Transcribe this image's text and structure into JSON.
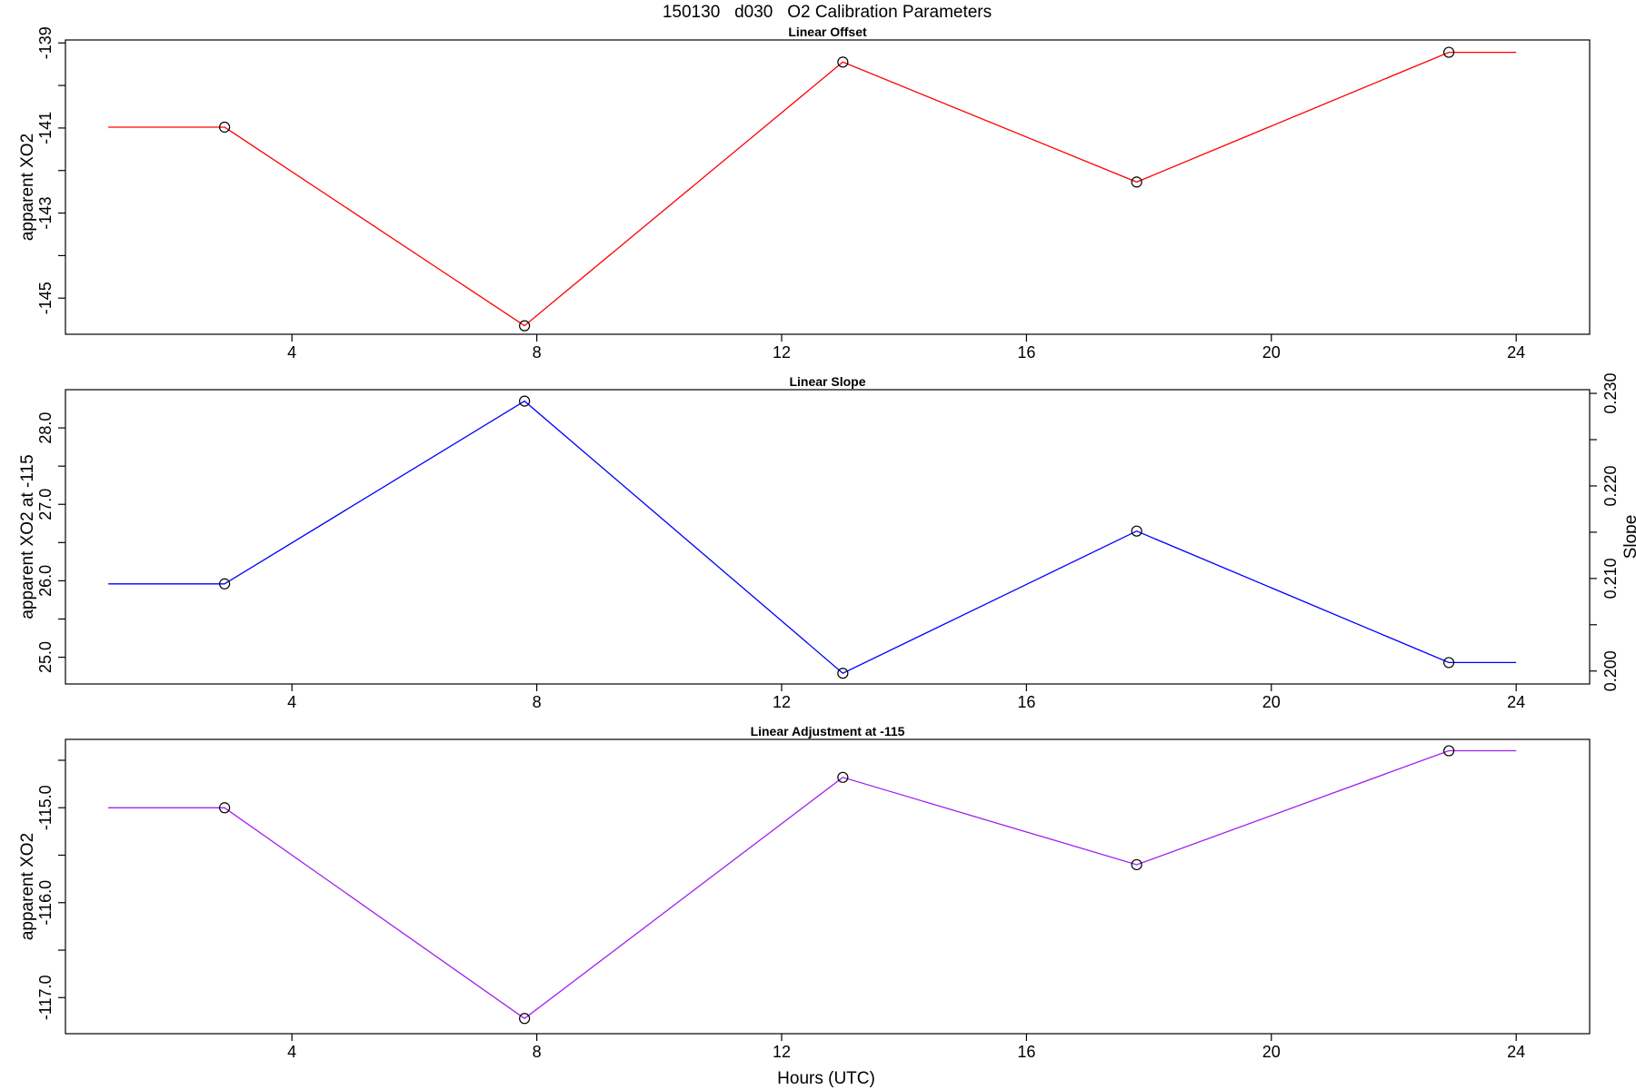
{
  "chart_data": {
    "type": "line",
    "title": "150130   d030   O2 Calibration Parameters",
    "xlabel": "Hours (UTC)",
    "xlim": [
      0.3,
      25.2
    ],
    "xticks": [
      4,
      8,
      12,
      16,
      20,
      24
    ],
    "panels": [
      {
        "title": "Linear Offset",
        "ylabel": "apparent XO2",
        "ylim": [
          -145.85,
          -138.93
        ],
        "yticks": [
          -145,
          -144,
          -143,
          -142,
          -141,
          -140,
          -139
        ],
        "ytick_labels": [
          "-145",
          "",
          "-143",
          "",
          "-141",
          "",
          "-139"
        ],
        "line_color": "#ff0000",
        "x": [
          1.0,
          2.9,
          7.8,
          13.0,
          17.8,
          22.9,
          24.0
        ],
        "y": [
          -140.98,
          -140.98,
          -145.65,
          -139.45,
          -142.27,
          -139.22,
          -139.22
        ],
        "marker_indices": [
          1,
          2,
          3,
          4,
          5
        ]
      },
      {
        "title": "Linear Slope",
        "ylabel": "apparent XO2 at -115",
        "ylim": [
          24.65,
          28.5
        ],
        "yticks": [
          25.0,
          25.5,
          26.0,
          26.5,
          27.0,
          27.5,
          28.0
        ],
        "ytick_labels": [
          "25.0",
          "",
          "26.0",
          "",
          "27.0",
          "",
          "28.0"
        ],
        "right_axis": {
          "label": "Slope",
          "ylim": [
            0.1986,
            0.2304
          ],
          "yticks": [
            0.2,
            0.205,
            0.21,
            0.215,
            0.22,
            0.225,
            0.23
          ],
          "ytick_labels": [
            "0.200",
            "",
            "0.210",
            "",
            "0.220",
            "",
            "0.230"
          ]
        },
        "line_color": "#0000ff",
        "x": [
          1.0,
          2.9,
          7.8,
          13.0,
          17.8,
          22.9,
          24.0
        ],
        "y": [
          25.96,
          25.96,
          28.35,
          24.79,
          26.65,
          24.93,
          24.93
        ],
        "marker_indices": [
          1,
          2,
          3,
          4,
          5
        ]
      },
      {
        "title": "Linear Adjustment at -115",
        "ylabel": "apparent XO2",
        "ylim": [
          -117.38,
          -114.28
        ],
        "yticks": [
          -117.0,
          -116.5,
          -116.0,
          -115.5,
          -115.0,
          -114.5
        ],
        "ytick_labels": [
          "-117.0",
          "",
          "-116.0",
          "",
          "-115.0",
          ""
        ],
        "line_color": "#a020f0",
        "x": [
          1.0,
          2.9,
          7.8,
          13.0,
          17.8,
          22.9,
          24.0
        ],
        "y": [
          -115.0,
          -115.0,
          -117.22,
          -114.68,
          -115.6,
          -114.4,
          -114.4
        ],
        "marker_indices": [
          1,
          2,
          3,
          4,
          5
        ]
      }
    ]
  }
}
